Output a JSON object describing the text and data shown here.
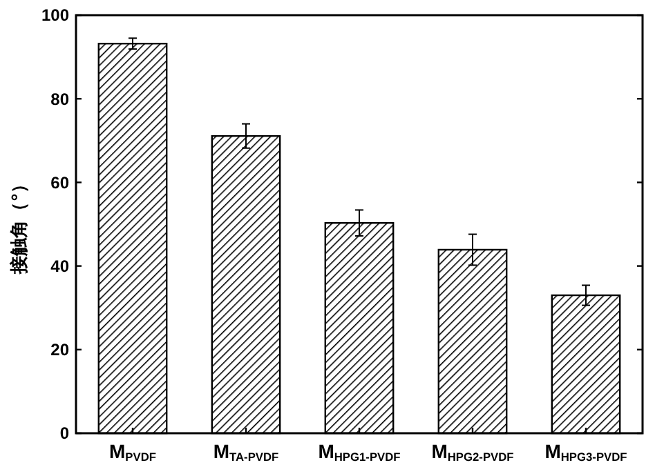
{
  "chart_data": {
    "type": "bar",
    "ylabel": "接触角（°）",
    "categories": [
      "M$_{PVDF}$",
      "M$_{TA-PVDF}$",
      "M$_{HPG1-PVDF}$",
      "M$_{HPG2-PVDF}$",
      "M$_{HPG3-PVDF}$"
    ],
    "values": [
      93.2,
      71.1,
      50.3,
      43.9,
      33.0
    ],
    "errors": [
      1.3,
      2.9,
      3.1,
      3.7,
      2.4
    ],
    "color": "#000000",
    "ylim": [
      0,
      100
    ],
    "yticks": [
      0,
      20,
      40,
      60,
      80,
      100
    ],
    "grid": false
  }
}
